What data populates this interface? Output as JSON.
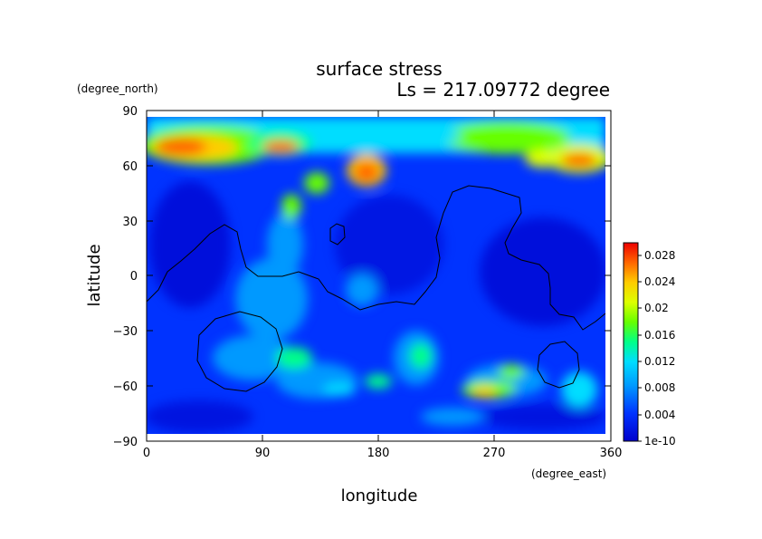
{
  "chart_data": {
    "type": "heatmap",
    "title": "surface stress",
    "subtitle": "Ls = 217.09772 degree",
    "xlabel": "longitude",
    "ylabel": "latitude",
    "xunit": "(degree_east)",
    "yunit": "(degree_north)",
    "xlim": [
      0,
      360
    ],
    "ylim": [
      -90,
      90
    ],
    "xticks": [
      "0",
      "90",
      "180",
      "270",
      "360"
    ],
    "yticks": [
      "90",
      "60",
      "30",
      "0",
      "−30",
      "−60",
      "−90"
    ],
    "colorbar": {
      "labels": [
        "1e-10",
        "0.004",
        "0.008",
        "0.012",
        "0.016",
        "0.02",
        "0.024",
        "0.028"
      ],
      "min": 0,
      "max": 0.03
    },
    "grid": false,
    "legend": "right",
    "colormap": [
      "#0000cc",
      "#0033ff",
      "#0099ff",
      "#00ddff",
      "#00ff88",
      "#66ff00",
      "#ddff00",
      "#ffcc00",
      "#ff6600",
      "#ee0000"
    ]
  }
}
